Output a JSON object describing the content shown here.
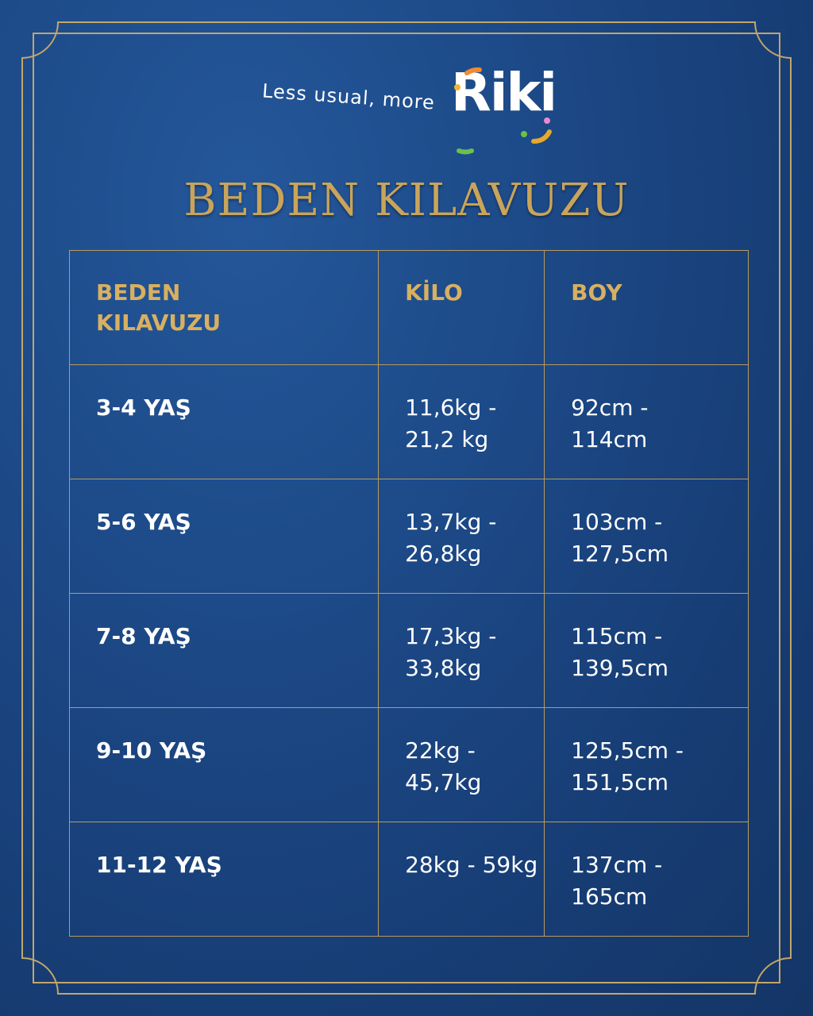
{
  "logo": {
    "tagline": "Less usual, more",
    "brand": "Riki",
    "dot_colors": [
      "#f28a2e",
      "#f2b431",
      "#e88ad0",
      "#6cc04a",
      "#e8a82a"
    ]
  },
  "title": "BEDEN KILAVUZU",
  "colors": {
    "background": "#1d4a88",
    "gold": "#c9a45a",
    "text": "#ffffff"
  },
  "table": {
    "headers": [
      "BEDEN KILAVUZU",
      "KİLO",
      "BOY"
    ],
    "rows": [
      {
        "age": "3-4 YAŞ",
        "kilo": "11,6kg - 21,2 kg",
        "boy": "92cm - 114cm"
      },
      {
        "age": "5-6 YAŞ",
        "kilo": "13,7kg - 26,8kg",
        "boy": "103cm - 127,5cm"
      },
      {
        "age": "7-8 YAŞ",
        "kilo": "17,3kg - 33,8kg",
        "boy": "115cm - 139,5cm"
      },
      {
        "age": "9-10 YAŞ",
        "kilo": "22kg - 45,7kg",
        "boy": "125,5cm - 151,5cm"
      },
      {
        "age": "11-12 YAŞ",
        "kilo": "28kg - 59kg",
        "boy": "137cm - 165cm"
      }
    ]
  }
}
